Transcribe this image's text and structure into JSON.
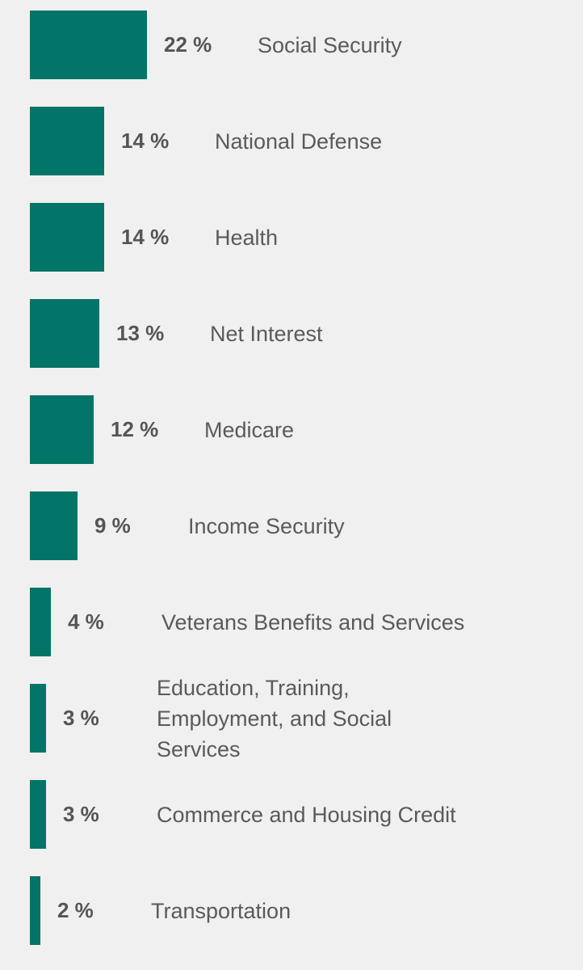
{
  "chart_data": {
    "type": "bar",
    "orientation": "horizontal",
    "categories": [
      "Social Security",
      "National Defense",
      "Health",
      "Net Interest",
      "Medicare",
      "Income Security",
      "Veterans Benefits and Services",
      "Education, Training, Employment, and Social Services",
      "Commerce and Housing Credit",
      "Transportation"
    ],
    "values": [
      22,
      14,
      14,
      13,
      12,
      9,
      4,
      3,
      3,
      2
    ],
    "value_labels": [
      "22 %",
      "14 %",
      "14 %",
      "13 %",
      "12 %",
      "9 %",
      "4 %",
      "3 %",
      "3 %",
      "2 %"
    ],
    "unit": "%",
    "grid": false,
    "legend": "none",
    "bar_color": "#037468"
  },
  "colors": {
    "background": "#f0f0f0",
    "bar": "#037468",
    "text": "#5a5a5a"
  }
}
